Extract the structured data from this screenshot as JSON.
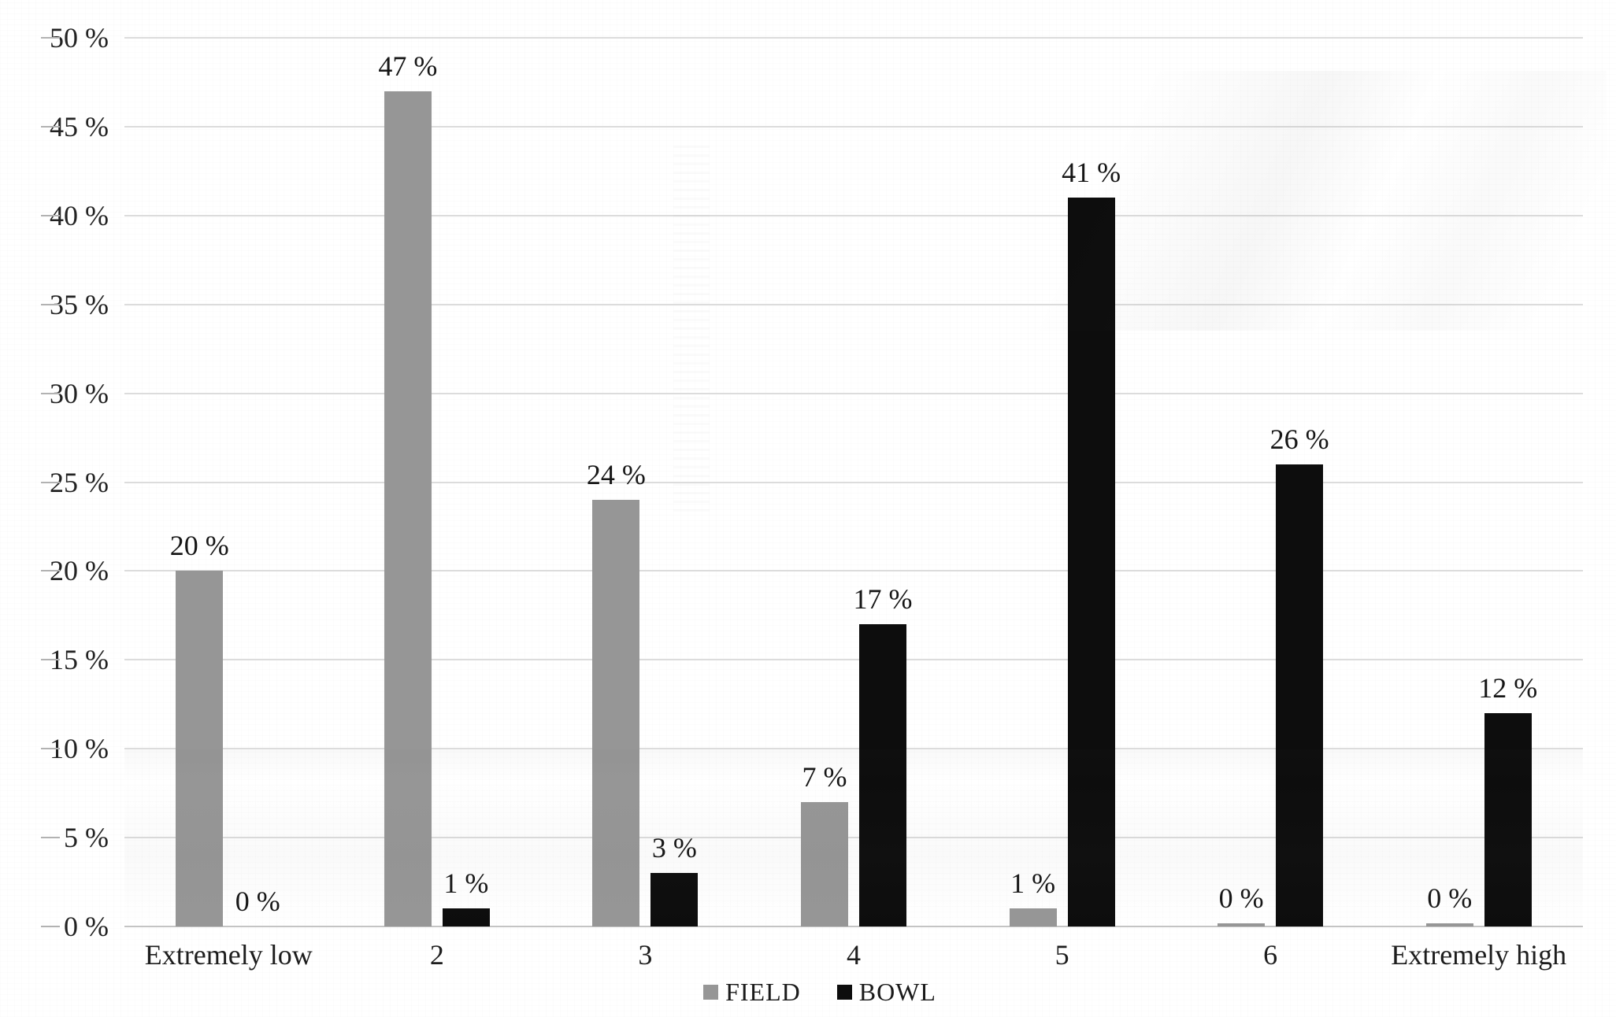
{
  "chart_data": {
    "type": "bar",
    "title": "",
    "xlabel": "",
    "ylabel": "",
    "categories": [
      "Extremely low",
      "2",
      "3",
      "4",
      "5",
      "6",
      "Extremely high"
    ],
    "series": [
      {
        "name": "FIELD",
        "color": "#969696",
        "values": [
          20,
          47,
          24,
          7,
          1,
          0,
          0
        ]
      },
      {
        "name": "BOWL",
        "color": "#0d0d0d",
        "values": [
          0,
          1,
          3,
          17,
          41,
          26,
          12
        ]
      }
    ],
    "value_label_suffix": " %",
    "ytick_suffix": " %",
    "yticks": [
      0,
      5,
      10,
      15,
      20,
      25,
      30,
      35,
      40,
      45,
      50
    ],
    "ylim": [
      0,
      50
    ],
    "grid": true,
    "grid_color": "#dcdcdc",
    "axis_color": "#c4c4c4",
    "text_color": "#1b1b1b",
    "legend_position": "bottom"
  }
}
